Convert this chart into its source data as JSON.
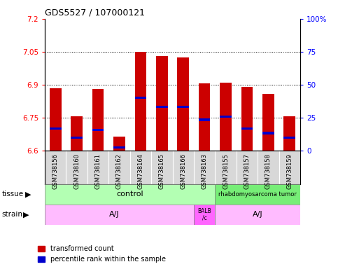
{
  "title": "GDS5527 / 107000121",
  "samples": [
    "GSM738156",
    "GSM738160",
    "GSM738161",
    "GSM738162",
    "GSM738164",
    "GSM738165",
    "GSM738166",
    "GSM738163",
    "GSM738155",
    "GSM738157",
    "GSM738158",
    "GSM738159"
  ],
  "bar_values": [
    6.885,
    6.755,
    6.88,
    6.665,
    7.05,
    7.03,
    7.025,
    6.905,
    6.91,
    6.89,
    6.86,
    6.755
  ],
  "blue_values": [
    6.7,
    6.66,
    6.695,
    6.615,
    6.84,
    6.8,
    6.8,
    6.74,
    6.755,
    6.7,
    6.68,
    6.66
  ],
  "ymin": 6.6,
  "ymax": 7.2,
  "yticks_left": [
    6.6,
    6.75,
    6.9,
    7.05,
    7.2
  ],
  "yticks_right_vals": [
    0,
    25,
    50,
    75,
    100
  ],
  "bar_color": "#cc0000",
  "blue_color": "#0000cc",
  "bar_width": 0.55,
  "tissue_color_control": "#b3ffb3",
  "tissue_color_tumor": "#77ee77",
  "strain_color_aj": "#ffbbff",
  "strain_color_balb": "#ff66ff",
  "label_tissue": "tissue",
  "label_strain": "strain",
  "legend_red": "transformed count",
  "legend_blue": "percentile rank within the sample"
}
